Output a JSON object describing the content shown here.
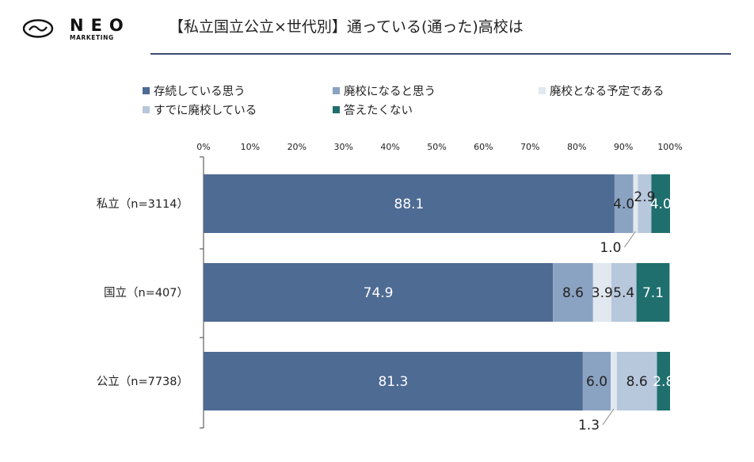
{
  "logo": {
    "name": "NEO",
    "subtitle": "MARKETING"
  },
  "title": "【私立国立公立×世代別】通っている(通った)高校は",
  "colors": {
    "title_rule": "#3d4c74",
    "axis": "#404040"
  },
  "chart_data": {
    "type": "bar",
    "orientation": "horizontal",
    "stacked": true,
    "categories": [
      "私立（n=3114）",
      "国立（n=407）",
      "公立（n=7738）"
    ],
    "series": [
      {
        "name": "存続している思う",
        "color": "#4e6b94",
        "label_color": "#ffffff",
        "values": [
          88.1,
          74.9,
          81.3
        ]
      },
      {
        "name": "廃校になると思う",
        "color": "#8ba3c2",
        "label_color": "#222222",
        "values": [
          4.0,
          8.6,
          6.0
        ]
      },
      {
        "name": "廃校となる予定である",
        "color": "#e2e8f0",
        "label_color": "#222222",
        "values": [
          1.0,
          3.9,
          1.3
        ]
      },
      {
        "name": "すでに廃校している",
        "color": "#b7c7dc",
        "label_color": "#222222",
        "values": [
          2.9,
          5.4,
          8.6
        ]
      },
      {
        "name": "答えたくない",
        "color": "#1f6f6e",
        "label_color": "#ffffff",
        "values": [
          4.0,
          7.1,
          2.8
        ]
      }
    ],
    "data_labels": [
      [
        "88.1",
        "4.0",
        "1.0",
        "2.9",
        "4.0"
      ],
      [
        "74.9",
        "8.6",
        "3.9",
        "5.4",
        "7.1"
      ],
      [
        "81.3",
        "6.0",
        "1.3",
        "8.6",
        "2.8"
      ]
    ],
    "x_ticks": [
      "0%",
      "10%",
      "20%",
      "30%",
      "40%",
      "50%",
      "60%",
      "70%",
      "80%",
      "90%",
      "100%"
    ],
    "xlim": [
      0,
      100
    ],
    "legend_position": "top"
  }
}
